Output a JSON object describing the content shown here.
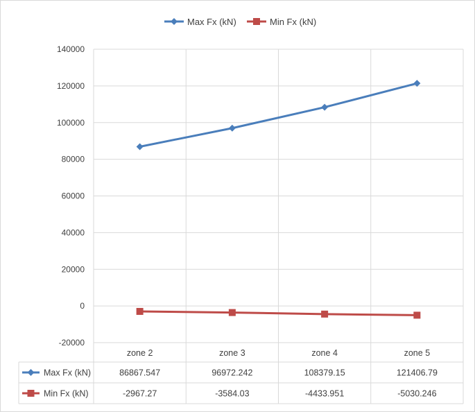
{
  "chart_data": {
    "type": "line",
    "categories": [
      "zone 2",
      "zone 3",
      "zone 4",
      "zone 5"
    ],
    "series": [
      {
        "name": "Max Fx (kN)",
        "values": [
          86867.547,
          96972.242,
          108379.15,
          121406.79
        ],
        "labels": [
          "86867.547",
          "96972.242",
          "108379.15",
          "121406.79"
        ],
        "color": "#4a7ebb",
        "marker": "diamond"
      },
      {
        "name": "Min Fx (kN)",
        "values": [
          -2967.27,
          -3584.03,
          -4433.951,
          -5030.246
        ],
        "labels": [
          "-2967.27",
          "-3584.03",
          "-4433.951",
          "-5030.246"
        ],
        "color": "#be4b48",
        "marker": "square"
      }
    ],
    "ylim": [
      -20000,
      140000
    ],
    "yticks": [
      140000,
      120000,
      100000,
      80000,
      60000,
      40000,
      20000,
      0,
      -20000
    ],
    "ytick_labels": [
      "140000",
      "120000",
      "100000",
      "80000",
      "60000",
      "40000",
      "20000",
      "0",
      "-20000"
    ],
    "grid": true,
    "legend_position": "top",
    "data_table": true,
    "title": "",
    "xlabel": "",
    "ylabel": ""
  }
}
